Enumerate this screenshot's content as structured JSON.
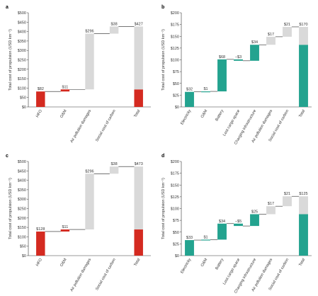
{
  "style": {
    "fuel_color_red": "#d42a20",
    "fuel_color_teal": "#23a38f",
    "damage_color": "#d9d9d9",
    "axis_color": "#333333"
  },
  "chart_data": [
    {
      "type": "waterfall",
      "panel": "a",
      "ylabel": "Total cost of propulsion (USD km⁻¹)",
      "ylim": [
        0,
        500
      ],
      "yticks": [
        "$0",
        "$50",
        "$100",
        "$150",
        "$200",
        "$250",
        "$300",
        "$350",
        "$400",
        "$450",
        "$500"
      ],
      "fuel_color": "red",
      "categories": [
        "HFO",
        "O&M",
        "Air pollution damages",
        "Social cost of carbon",
        "Total"
      ],
      "steps": [
        {
          "label": "$82",
          "from": 0,
          "to": 82,
          "kind": "fuel"
        },
        {
          "label": "$11",
          "from": 82,
          "to": 93,
          "kind": "fuel"
        },
        {
          "label": "$296",
          "from": 93,
          "to": 389,
          "kind": "damage"
        },
        {
          "label": "$38",
          "from": 389,
          "to": 427,
          "kind": "damage"
        },
        {
          "label": "$93",
          "from": 0,
          "to": 93,
          "kind": "total-fuel"
        },
        {
          "label": "$427",
          "from": 93,
          "to": 427,
          "kind": "total-damage"
        }
      ]
    },
    {
      "type": "waterfall",
      "panel": "b",
      "ylabel": "Total cost of propulsion (USD km⁻¹)",
      "ylim": [
        0,
        200
      ],
      "yticks": [
        "$0",
        "$25",
        "$50",
        "$75",
        "$100",
        "$125",
        "$150",
        "$175",
        "$200"
      ],
      "fuel_color": "teal",
      "categories": [
        "Electricity",
        "O&M",
        "Battery",
        "Lost cargo space",
        "Charging infrastructure",
        "Air pollution damages",
        "Social cost of carbon",
        "Total"
      ],
      "steps": [
        {
          "label": "$32",
          "from": 0,
          "to": 32,
          "kind": "fuel"
        },
        {
          "label": "$1",
          "from": 32,
          "to": 33,
          "kind": "fuel"
        },
        {
          "label": "$68",
          "from": 33,
          "to": 101,
          "kind": "fuel"
        },
        {
          "label": "−$3",
          "from": 101,
          "to": 98,
          "kind": "fuel"
        },
        {
          "label": "$34",
          "from": 98,
          "to": 132,
          "kind": "fuel"
        },
        {
          "label": "$17",
          "from": 132,
          "to": 149,
          "kind": "damage"
        },
        {
          "label": "$21",
          "from": 149,
          "to": 170,
          "kind": "damage"
        },
        {
          "label": "$132",
          "from": 0,
          "to": 132,
          "kind": "total-fuel"
        },
        {
          "label": "$170",
          "from": 132,
          "to": 170,
          "kind": "total-damage"
        }
      ]
    },
    {
      "type": "waterfall",
      "panel": "c",
      "ylabel": "Total cost of propulsion (USD km⁻¹)",
      "ylim": [
        0,
        500
      ],
      "yticks": [
        "$0",
        "$50",
        "$100",
        "$150",
        "$200",
        "$250",
        "$300",
        "$350",
        "$400",
        "$450",
        "$500"
      ],
      "fuel_color": "red",
      "categories": [
        "HFO",
        "O&M",
        "Air pollution damages",
        "Social cost of carbon",
        "Total"
      ],
      "steps": [
        {
          "label": "$128",
          "from": 0,
          "to": 128,
          "kind": "fuel"
        },
        {
          "label": "$11",
          "from": 128,
          "to": 139,
          "kind": "fuel"
        },
        {
          "label": "$296",
          "from": 139,
          "to": 435,
          "kind": "damage"
        },
        {
          "label": "$38",
          "from": 435,
          "to": 473,
          "kind": "damage"
        },
        {
          "label": "$139",
          "from": 0,
          "to": 139,
          "kind": "total-fuel"
        },
        {
          "label": "$473",
          "from": 139,
          "to": 473,
          "kind": "total-damage"
        }
      ]
    },
    {
      "type": "waterfall",
      "panel": "d",
      "ylabel": "Total cost of propulsion (USD km⁻¹)",
      "ylim": [
        0,
        200
      ],
      "yticks": [
        "$0",
        "$25",
        "$50",
        "$75",
        "$100",
        "$125",
        "$150",
        "$175",
        "$200"
      ],
      "fuel_color": "teal",
      "categories": [
        "Electricity",
        "O&M",
        "Battery",
        "Lost cargo space",
        "Charging infrastructure",
        "Air pollution damages",
        "Social cost of carbon",
        "Total"
      ],
      "steps": [
        {
          "label": "$33",
          "from": 0,
          "to": 33,
          "kind": "fuel"
        },
        {
          "label": "$1",
          "from": 33,
          "to": 34,
          "kind": "fuel"
        },
        {
          "label": "$34",
          "from": 34,
          "to": 68,
          "kind": "fuel"
        },
        {
          "label": "−$5",
          "from": 68,
          "to": 63,
          "kind": "fuel"
        },
        {
          "label": "$25",
          "from": 63,
          "to": 88,
          "kind": "fuel"
        },
        {
          "label": "$17",
          "from": 88,
          "to": 105,
          "kind": "damage"
        },
        {
          "label": "$21",
          "from": 105,
          "to": 126,
          "kind": "damage"
        },
        {
          "label": "$87",
          "from": 0,
          "to": 88,
          "kind": "total-fuel"
        },
        {
          "label": "$125",
          "from": 88,
          "to": 126,
          "kind": "total-damage"
        }
      ]
    }
  ]
}
